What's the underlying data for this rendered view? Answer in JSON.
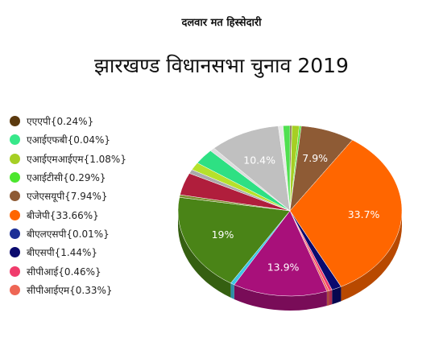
{
  "chart_data": {
    "type": "pie",
    "title": "झारखण्ड विधानसभा चुनाव 2019",
    "subtitle": "दलवार मत हिस्सेदारी",
    "legend_position": "left",
    "slices": [
      {
        "legend": "एएएपी{0.24%}",
        "name": "एएएपी",
        "value": 0.24,
        "color": "#5b3a0e"
      },
      {
        "legend": "एआईएफबी{0.04%}",
        "name": "एआईएफबी",
        "value": 0.04,
        "color": "#37e88a"
      },
      {
        "legend": "एआईएमआईएम{1.08%}",
        "name": "एआईएमआईएम",
        "value": 1.08,
        "color": "#a6cf24"
      },
      {
        "legend": "एआईटीसी{0.29%}",
        "name": "एआईटीसी",
        "value": 0.29,
        "color": "#4ce62e"
      },
      {
        "legend": "एजेएसयूपी{7.94%}",
        "name": "एजेएसयूपी",
        "value": 7.94,
        "color": "#8e5b35",
        "label": "7.9%"
      },
      {
        "legend": "बीजेपी{33.66%}",
        "name": "बीजेपी",
        "value": 33.66,
        "color": "#ff6600",
        "label": "33.7%"
      },
      {
        "legend": "बीएलएसपी{0.01%}",
        "name": "बीएलएसपी",
        "value": 0.01,
        "color": "#1c2f96"
      },
      {
        "legend": "बीएसपी{1.44%}",
        "name": "बीएसपी",
        "value": 1.44,
        "color": "#0a0a6e"
      },
      {
        "legend": "सीपीआई{0.46%}",
        "name": "सीपीआई",
        "value": 0.46,
        "color": "#f03c6c"
      },
      {
        "legend": "सीपीआईएम{0.33%}",
        "name": "सीपीआईएम",
        "value": 0.33,
        "color": "#ee6655"
      },
      {
        "name": "",
        "value": 13.9,
        "color": "#a8107a",
        "label": "13.9%"
      },
      {
        "name": "",
        "value": 0.6,
        "color": "#3ec7e6"
      },
      {
        "name": "",
        "value": 19.0,
        "color": "#4a8417",
        "label": "19%"
      },
      {
        "name": "",
        "value": 0.5,
        "color": "#7a8c2a"
      },
      {
        "name": "",
        "value": 4.3,
        "color": "#b01e3c"
      },
      {
        "name": "",
        "value": 0.8,
        "color": "#aaaaaa"
      },
      {
        "name": "",
        "value": 1.5,
        "color": "#b6e12b"
      },
      {
        "name": "",
        "value": 3.0,
        "color": "#2ee083"
      },
      {
        "name": "",
        "value": 0.7,
        "color": "#dddddd"
      },
      {
        "name": "",
        "value": 10.4,
        "color": "#c0c0c0",
        "label": "10.4%"
      },
      {
        "name": "",
        "value": 0.7,
        "color": "#e8e8e8"
      },
      {
        "name": "",
        "value": 1.0,
        "color": "#50e050"
      }
    ]
  }
}
